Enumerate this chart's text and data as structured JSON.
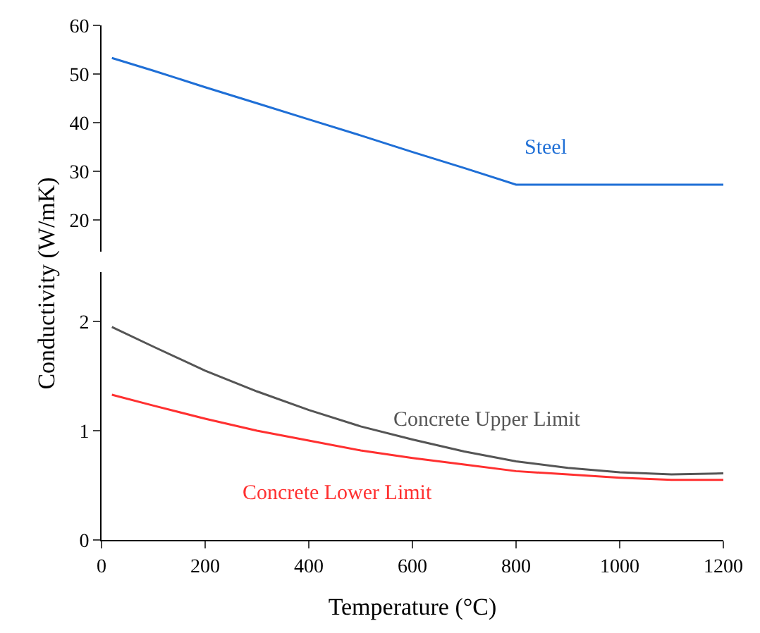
{
  "chart_data": [
    {
      "type": "line",
      "ylabel": "Conductivity (W/mK)",
      "x": [
        20,
        100,
        200,
        300,
        400,
        500,
        600,
        700,
        800,
        1200
      ],
      "xlim": [
        0,
        1200
      ],
      "xticks": [
        0,
        200,
        400,
        600,
        800,
        1000,
        1200
      ],
      "ylim": [
        13.5,
        60
      ],
      "yticks": [
        20,
        30,
        40,
        50,
        60
      ],
      "tick_labels": "y",
      "series": [
        {
          "name": "Steel",
          "color": "#1f6fd6",
          "values": [
            53.3,
            50.7,
            47.3,
            44.0,
            40.7,
            37.4,
            34.0,
            30.7,
            27.3,
            27.3
          ]
        }
      ]
    },
    {
      "type": "line",
      "xlabel": "Temperature (°C)",
      "x": [
        20,
        100,
        200,
        300,
        400,
        500,
        600,
        700,
        800,
        900,
        1000,
        1100,
        1200
      ],
      "xlim": [
        0,
        1200
      ],
      "xticks": [
        0,
        200,
        400,
        600,
        800,
        1000,
        1200
      ],
      "ylim": [
        0,
        2.45
      ],
      "yticks": [
        0,
        1,
        2
      ],
      "series": [
        {
          "name": "Concrete Upper Limit",
          "color": "#555555",
          "values": [
            1.95,
            1.77,
            1.55,
            1.36,
            1.19,
            1.04,
            0.92,
            0.81,
            0.72,
            0.66,
            0.62,
            0.6,
            0.61
          ]
        },
        {
          "name": "Concrete Lower Limit",
          "color": "#ff3030",
          "values": [
            1.33,
            1.23,
            1.11,
            1.0,
            0.91,
            0.82,
            0.75,
            0.69,
            0.63,
            0.6,
            0.57,
            0.55,
            0.55
          ]
        }
      ]
    }
  ]
}
